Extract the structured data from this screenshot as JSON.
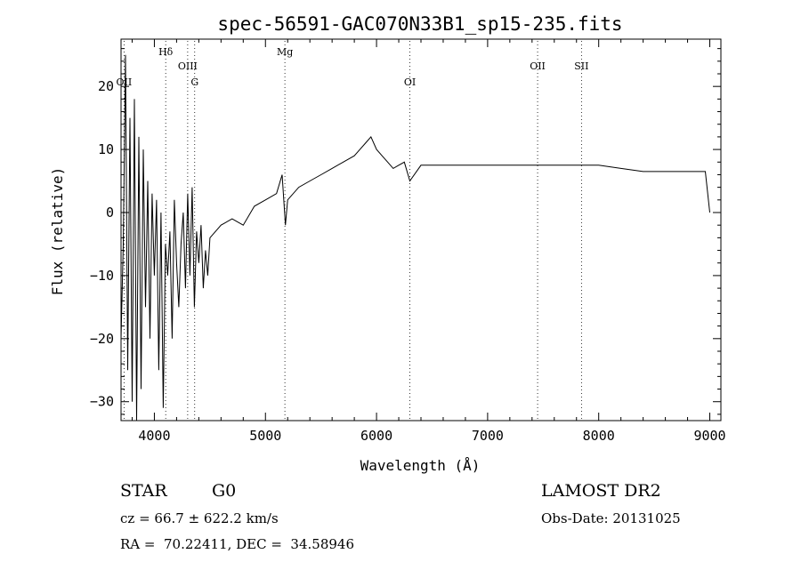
{
  "chart_data": {
    "type": "line",
    "title": "spec-56591-GAC070N33B1_sp15-235.fits",
    "xlabel": "Wavelength (Å)",
    "ylabel": "Flux (relative)",
    "xlim": [
      3700,
      9100
    ],
    "ylim": [
      -33,
      27.5
    ],
    "xticks": [
      4000,
      5000,
      6000,
      7000,
      8000,
      9000
    ],
    "yticks": [
      -30,
      -20,
      -10,
      0,
      10,
      20
    ],
    "grid": false,
    "line_color": "#000000",
    "line_markers": [
      {
        "label": "OII",
        "x": 3727,
        "row": 2
      },
      {
        "label": "Hδ",
        "x": 4102,
        "row": 0
      },
      {
        "label": "OIII",
        "x": 4300,
        "row": 1
      },
      {
        "label": "G",
        "x": 4363,
        "row": 2
      },
      {
        "label": "Mg",
        "x": 5175,
        "row": 0
      },
      {
        "label": "OI",
        "x": 6300,
        "row": 2
      },
      {
        "label": "OII",
        "x": 7450,
        "row": 1
      },
      {
        "label": "SII",
        "x": 7845,
        "row": 1
      }
    ],
    "series": [
      {
        "x": [
          3700,
          3720,
          3740,
          3760,
          3780,
          3800,
          3820,
          3840,
          3860,
          3880,
          3900,
          3920,
          3940,
          3960,
          3980,
          4000,
          4020,
          4040,
          4060,
          4080,
          4100,
          4120,
          4140,
          4160,
          4180,
          4200,
          4220,
          4240,
          4260,
          4280,
          4300,
          4320,
          4340,
          4360,
          4380,
          4400,
          4420,
          4440,
          4460,
          4480,
          4500,
          4600,
          4700,
          4800,
          4900,
          5000,
          5100,
          5150,
          5180,
          5200,
          5300,
          5400,
          5500,
          5600,
          5700,
          5800,
          5850,
          5900,
          5950,
          6000,
          6050,
          6100,
          6150,
          6200,
          6250,
          6300,
          6400,
          6500,
          6600,
          6800,
          7000,
          7200,
          7400,
          7600,
          7800,
          8000,
          8200,
          8400,
          8600,
          8800,
          8900,
          8960,
          9000
        ],
        "y": [
          -20,
          -5,
          25,
          -25,
          15,
          -30,
          18,
          -33,
          12,
          -28,
          10,
          -15,
          5,
          -20,
          3,
          -10,
          2,
          -25,
          0,
          -31,
          -5,
          -10,
          -3,
          -20,
          2,
          -8,
          -15,
          -5,
          0,
          -12,
          3,
          -10,
          4,
          -15,
          -3,
          -8,
          -2,
          -12,
          -6,
          -10,
          -4,
          -2,
          -1,
          -2,
          1,
          2,
          3,
          6,
          -2,
          2,
          4,
          5,
          6,
          7,
          8,
          9,
          10,
          11,
          12,
          10,
          9,
          8,
          7,
          7.5,
          8,
          5,
          7.5,
          7.5,
          7.5,
          7.5,
          7.5,
          7.5,
          7.5,
          7.5,
          7.5,
          7.5,
          7,
          6.5,
          6.5,
          6.5,
          6.5,
          6.5,
          0
        ]
      }
    ]
  },
  "info": {
    "object_type": "STAR",
    "subclass": "G0",
    "redshift_text": "cz = 66.7 ± 622.2 km/s",
    "coords_text": "RA =  70.22411, DEC =  34.58946",
    "survey": "LAMOST DR2",
    "obs_date": "Obs-Date: 20131025"
  }
}
